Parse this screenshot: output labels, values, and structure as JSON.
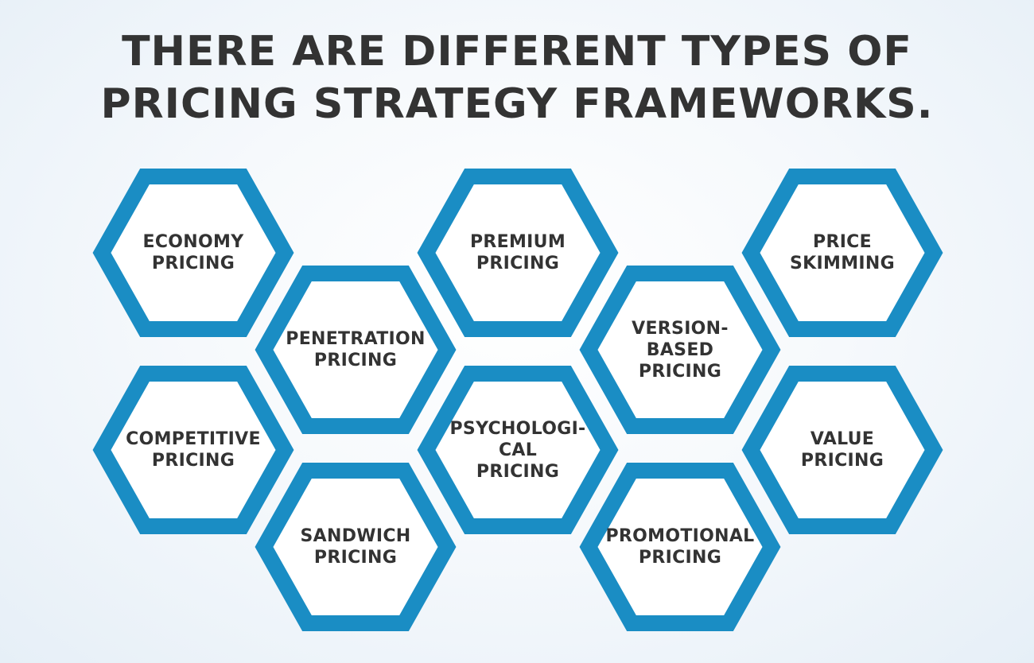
{
  "title": {
    "line1": "THERE ARE DIFFERENT TYPES OF",
    "line2": "PRICING STRATEGY FRAMEWORKS."
  },
  "colors": {
    "hex_border": "#1a8dc4",
    "hex_fill": "#ffffff",
    "text": "#333333"
  },
  "hexagons": [
    {
      "id": "economy",
      "lines": [
        "ECONOMY",
        "PRICING"
      ]
    },
    {
      "id": "competitive",
      "lines": [
        "COMPETITIVE",
        "PRICING"
      ]
    },
    {
      "id": "penetration",
      "lines": [
        "PENETRATION",
        "PRICING"
      ]
    },
    {
      "id": "sandwich",
      "lines": [
        "SANDWICH",
        "PRICING"
      ]
    },
    {
      "id": "premium",
      "lines": [
        "PREMIUM",
        "PRICING"
      ]
    },
    {
      "id": "psychological",
      "lines": [
        "PSYCHOLOGI-",
        "CAL",
        "PRICING"
      ]
    },
    {
      "id": "version-based",
      "lines": [
        "VERSION-",
        "BASED",
        "PRICING"
      ]
    },
    {
      "id": "promotional",
      "lines": [
        "PROMOTIONAL",
        "PRICING"
      ]
    },
    {
      "id": "price-skimming",
      "lines": [
        "PRICE",
        "SKIMMING"
      ]
    },
    {
      "id": "value",
      "lines": [
        "VALUE",
        "PRICING"
      ]
    }
  ]
}
